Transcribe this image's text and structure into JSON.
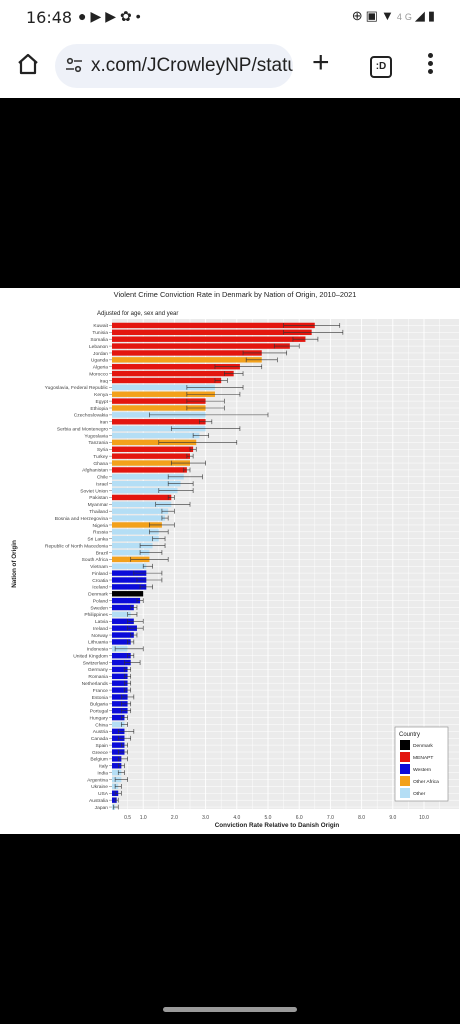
{
  "status_bar": {
    "time": "16:48",
    "network": "4G"
  },
  "browser": {
    "url": "x.com/JCrowleyNP/statu",
    "tab_label": ":D"
  },
  "colors": {
    "Denmark": "#000000",
    "MENAPT": "#e3160f",
    "Western": "#0b0bd9",
    "Other Africa": "#f3a11b",
    "Other": "#b4def5"
  },
  "chart_data": {
    "type": "bar",
    "orientation": "horizontal",
    "title": "Violent Crime Conviction Rate in Denmark by Nation of Origin, 2010–2021",
    "subtitle": "Adjusted for age, sex and year",
    "xlabel": "Conviction Rate Relative to Danish Origin",
    "ylabel": "Nation of Origin",
    "xticks": [
      "0.5",
      "1.0",
      "2.0",
      "3.0",
      "4.0",
      "5.0",
      "6.0",
      "7.0",
      "8.0",
      "9.0",
      "10.0"
    ],
    "xlim": [
      0,
      10.8
    ],
    "grid": true,
    "legend": {
      "title": "Country",
      "position": "bottom-right",
      "entries": [
        "Denmark",
        "MENAPT",
        "Western",
        "Other Africa",
        "Other"
      ]
    },
    "rows": [
      {
        "name": "Kuwait",
        "group": "MENAPT",
        "value": 6.5,
        "ci": [
          5.5,
          7.3
        ]
      },
      {
        "name": "Tunisia",
        "group": "MENAPT",
        "value": 6.4,
        "ci": [
          5.5,
          7.4
        ]
      },
      {
        "name": "Somalia",
        "group": "MENAPT",
        "value": 6.2,
        "ci": [
          5.8,
          6.6
        ]
      },
      {
        "name": "Lebanon",
        "group": "MENAPT",
        "value": 5.7,
        "ci": [
          5.2,
          6.0
        ]
      },
      {
        "name": "Jordan",
        "group": "MENAPT",
        "value": 4.8,
        "ci": [
          4.2,
          5.6
        ]
      },
      {
        "name": "Uganda",
        "group": "Other Africa",
        "value": 4.8,
        "ci": [
          4.3,
          5.3
        ]
      },
      {
        "name": "Algeria",
        "group": "MENAPT",
        "value": 4.1,
        "ci": [
          3.3,
          4.8
        ]
      },
      {
        "name": "Morocco",
        "group": "MENAPT",
        "value": 3.9,
        "ci": [
          3.6,
          4.2
        ]
      },
      {
        "name": "Iraq",
        "group": "MENAPT",
        "value": 3.5,
        "ci": [
          3.3,
          3.7
        ]
      },
      {
        "name": "Yugoslavia, Federal Republic",
        "group": "Other",
        "value": 3.3,
        "ci": [
          2.4,
          4.2
        ]
      },
      {
        "name": "Kenya",
        "group": "Other Africa",
        "value": 3.3,
        "ci": [
          2.4,
          4.1
        ]
      },
      {
        "name": "Egypt",
        "group": "MENAPT",
        "value": 3.0,
        "ci": [
          2.4,
          3.6
        ]
      },
      {
        "name": "Ethiopia",
        "group": "Other Africa",
        "value": 3.0,
        "ci": [
          2.4,
          3.6
        ]
      },
      {
        "name": "Czechoslovakia",
        "group": "Other",
        "value": 3.0,
        "ci": [
          1.2,
          5.0
        ]
      },
      {
        "name": "Iran",
        "group": "MENAPT",
        "value": 3.0,
        "ci": [
          2.8,
          3.2
        ]
      },
      {
        "name": "Serbia and Montenegro",
        "group": "Other",
        "value": 3.0,
        "ci": [
          1.9,
          4.1
        ]
      },
      {
        "name": "Yugoslavia",
        "group": "Other",
        "value": 2.8,
        "ci": [
          2.6,
          3.1
        ]
      },
      {
        "name": "Tanzania",
        "group": "Other Africa",
        "value": 2.7,
        "ci": [
          1.5,
          4.0
        ]
      },
      {
        "name": "Syria",
        "group": "MENAPT",
        "value": 2.6,
        "ci": [
          2.5,
          2.7
        ]
      },
      {
        "name": "Turkey",
        "group": "MENAPT",
        "value": 2.5,
        "ci": [
          2.4,
          2.6
        ]
      },
      {
        "name": "Ghana",
        "group": "Other Africa",
        "value": 2.5,
        "ci": [
          1.9,
          3.0
        ]
      },
      {
        "name": "Afghanistan",
        "group": "MENAPT",
        "value": 2.4,
        "ci": [
          2.3,
          2.5
        ]
      },
      {
        "name": "Chile",
        "group": "Other",
        "value": 2.3,
        "ci": [
          1.8,
          2.9
        ]
      },
      {
        "name": "Israel",
        "group": "Other",
        "value": 2.2,
        "ci": [
          1.8,
          2.6
        ]
      },
      {
        "name": "Soviet Union",
        "group": "Other",
        "value": 2.1,
        "ci": [
          1.5,
          2.6
        ]
      },
      {
        "name": "Pakistan",
        "group": "MENAPT",
        "value": 1.9,
        "ci": [
          1.8,
          2.0
        ]
      },
      {
        "name": "Myanmar",
        "group": "Other",
        "value": 1.9,
        "ci": [
          1.4,
          2.5
        ]
      },
      {
        "name": "Thailand",
        "group": "Other",
        "value": 1.8,
        "ci": [
          1.6,
          2.0
        ]
      },
      {
        "name": "Bosnia and Herzegovina",
        "group": "Other",
        "value": 1.7,
        "ci": [
          1.6,
          1.8
        ]
      },
      {
        "name": "Nigeria",
        "group": "Other Africa",
        "value": 1.6,
        "ci": [
          1.2,
          2.0
        ]
      },
      {
        "name": "Russia",
        "group": "Other",
        "value": 1.5,
        "ci": [
          1.2,
          1.8
        ]
      },
      {
        "name": "Sri Lanka",
        "group": "Other",
        "value": 1.5,
        "ci": [
          1.3,
          1.7
        ]
      },
      {
        "name": "Republic of North Macedonia",
        "group": "Other",
        "value": 1.3,
        "ci": [
          0.9,
          1.7
        ]
      },
      {
        "name": "Brazil",
        "group": "Other",
        "value": 1.2,
        "ci": [
          0.9,
          1.6
        ]
      },
      {
        "name": "South Africa",
        "group": "Other Africa",
        "value": 1.2,
        "ci": [
          0.6,
          1.8
        ]
      },
      {
        "name": "Vietnam",
        "group": "Other",
        "value": 1.1,
        "ci": [
          1.0,
          1.3
        ]
      },
      {
        "name": "Finland",
        "group": "Western",
        "value": 1.1,
        "ci": [
          0.7,
          1.6
        ]
      },
      {
        "name": "Croatia",
        "group": "Western",
        "value": 1.1,
        "ci": [
          0.8,
          1.6
        ]
      },
      {
        "name": "Iceland",
        "group": "Western",
        "value": 1.1,
        "ci": [
          0.9,
          1.3
        ]
      },
      {
        "name": "Denmark",
        "group": "Denmark",
        "value": 1.0,
        "ci": null
      },
      {
        "name": "Poland",
        "group": "Western",
        "value": 0.9,
        "ci": [
          0.8,
          1.0
        ]
      },
      {
        "name": "Sweden",
        "group": "Western",
        "value": 0.7,
        "ci": [
          0.6,
          0.8
        ]
      },
      {
        "name": "Philippines",
        "group": "Other",
        "value": 0.6,
        "ci": [
          0.5,
          0.8
        ]
      },
      {
        "name": "Latvia",
        "group": "Western",
        "value": 0.7,
        "ci": [
          0.5,
          1.0
        ]
      },
      {
        "name": "Ireland",
        "group": "Western",
        "value": 0.8,
        "ci": [
          0.5,
          1.0
        ]
      },
      {
        "name": "Norway",
        "group": "Western",
        "value": 0.7,
        "ci": [
          0.6,
          0.8
        ]
      },
      {
        "name": "Lithuania",
        "group": "Western",
        "value": 0.6,
        "ci": [
          0.5,
          0.7
        ]
      },
      {
        "name": "Indonesia",
        "group": "Other",
        "value": 0.5,
        "ci": [
          0.1,
          1.0
        ]
      },
      {
        "name": "United Kingdom",
        "group": "Western",
        "value": 0.6,
        "ci": [
          0.5,
          0.7
        ]
      },
      {
        "name": "Switzerland",
        "group": "Western",
        "value": 0.6,
        "ci": [
          0.4,
          0.9
        ]
      },
      {
        "name": "Germany",
        "group": "Western",
        "value": 0.5,
        "ci": [
          0.4,
          0.6
        ]
      },
      {
        "name": "Romania",
        "group": "Western",
        "value": 0.5,
        "ci": [
          0.4,
          0.6
        ]
      },
      {
        "name": "Netherlands",
        "group": "Western",
        "value": 0.5,
        "ci": [
          0.4,
          0.6
        ]
      },
      {
        "name": "France",
        "group": "Western",
        "value": 0.5,
        "ci": [
          0.4,
          0.6
        ]
      },
      {
        "name": "Estonia",
        "group": "Western",
        "value": 0.5,
        "ci": [
          0.3,
          0.7
        ]
      },
      {
        "name": "Bulgaria",
        "group": "Western",
        "value": 0.5,
        "ci": [
          0.3,
          0.6
        ]
      },
      {
        "name": "Portugal",
        "group": "Western",
        "value": 0.5,
        "ci": [
          0.3,
          0.6
        ]
      },
      {
        "name": "Hungary",
        "group": "Western",
        "value": 0.4,
        "ci": [
          0.3,
          0.5
        ]
      },
      {
        "name": "China",
        "group": "Other",
        "value": 0.4,
        "ci": [
          0.3,
          0.5
        ]
      },
      {
        "name": "Austria",
        "group": "Western",
        "value": 0.4,
        "ci": [
          0.2,
          0.7
        ]
      },
      {
        "name": "Canada",
        "group": "Western",
        "value": 0.4,
        "ci": [
          0.2,
          0.6
        ]
      },
      {
        "name": "Spain",
        "group": "Western",
        "value": 0.4,
        "ci": [
          0.3,
          0.5
        ]
      },
      {
        "name": "Greece",
        "group": "Western",
        "value": 0.4,
        "ci": [
          0.2,
          0.5
        ]
      },
      {
        "name": "Belgium",
        "group": "Western",
        "value": 0.3,
        "ci": [
          0.2,
          0.5
        ]
      },
      {
        "name": "Italy",
        "group": "Western",
        "value": 0.3,
        "ci": [
          0.2,
          0.4
        ]
      },
      {
        "name": "India",
        "group": "Other",
        "value": 0.3,
        "ci": [
          0.2,
          0.4
        ]
      },
      {
        "name": "Argentina",
        "group": "Other",
        "value": 0.3,
        "ci": [
          0.1,
          0.5
        ]
      },
      {
        "name": "Ukraine",
        "group": "Other",
        "value": 0.2,
        "ci": [
          0.1,
          0.3
        ]
      },
      {
        "name": "USA",
        "group": "Western",
        "value": 0.2,
        "ci": [
          0.1,
          0.3
        ]
      },
      {
        "name": "Australia",
        "group": "Western",
        "value": 0.15,
        "ci": [
          0.1,
          0.2
        ]
      },
      {
        "name": "Japan",
        "group": "Other",
        "value": 0.1,
        "ci": [
          0.05,
          0.2
        ]
      }
    ]
  }
}
